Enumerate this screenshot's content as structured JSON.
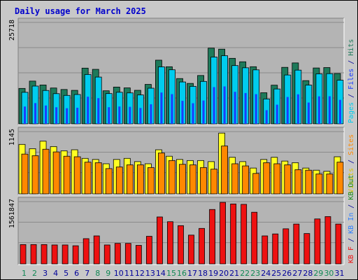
{
  "chart_data": {
    "type": "bar",
    "title": "Daily usage for March 2025",
    "days": [
      "1",
      "2",
      "3",
      "4",
      "5",
      "6",
      "7",
      "8",
      "9",
      "10",
      "11",
      "12",
      "13",
      "14",
      "15",
      "16",
      "17",
      "18",
      "19",
      "20",
      "21",
      "22",
      "23",
      "24",
      "25",
      "26",
      "27",
      "28",
      "29",
      "30",
      "31"
    ],
    "weekend_days": [
      "1",
      "2",
      "8",
      "9",
      "15",
      "16",
      "22",
      "23",
      "29",
      "30"
    ],
    "colors": {
      "background": "#c8c8c8",
      "plot_bg": "#b4b4b4",
      "pages": "#1e7a5a",
      "files": "#00ccee",
      "hits": "#1a3cff",
      "visits": "#ffff22",
      "sites": "#ff8800",
      "kb_out": "#1d8c1d",
      "kb_in": "#2e7fff",
      "kb_f": "#ee1111",
      "title": "#0000cc",
      "weekday_label": "#000099",
      "weekend_label": "#118855"
    },
    "panels": [
      {
        "id": "top",
        "ymax_label": "25718",
        "ymax": 25718,
        "legend": [
          {
            "text": "Pages",
            "color": "#00ccee"
          },
          {
            "text": " / ",
            "color": "#000099"
          },
          {
            "text": "Files",
            "color": "#1a3cff"
          },
          {
            "text": " / ",
            "color": "#000099"
          },
          {
            "text": "Hits",
            "color": "#1e7a5a"
          }
        ],
        "series": [
          {
            "name": "Hits",
            "values": [
              9050,
              10920,
              9930,
              9160,
              8780,
              8560,
              14230,
              13920,
              8450,
              9400,
              9190,
              8570,
              10080,
              16260,
              14580,
              11570,
              10330,
              12350,
              19330,
              19070,
              16730,
              15850,
              14590,
              7950,
              9880,
              14430,
              15560,
              11040,
              14270,
              14370,
              12860
            ]
          },
          {
            "name": "Files",
            "values": [
              8060,
              9650,
              8530,
              7720,
              7270,
              7500,
              12610,
              11950,
              7740,
              8070,
              7910,
              7390,
              9110,
              14550,
              13810,
              10700,
              9580,
              10840,
              17060,
              17390,
              14880,
              14320,
              13790,
              6360,
              8910,
              12480,
              13720,
              9900,
              12770,
              12820,
              11150
            ]
          }
        ]
      },
      {
        "id": "mid",
        "ymax_label": "1145",
        "ymax": 1145,
        "legend": [
          {
            "text": "Visits",
            "color": "#d8c200"
          },
          {
            "text": " / ",
            "color": "#000099"
          },
          {
            "text": "Sites",
            "color": "#ff8800"
          }
        ],
        "series": [
          {
            "name": "Visits",
            "values": [
              920,
              840,
              980,
              880,
              800,
              820,
              660,
              640,
              560,
              640,
              660,
              600,
              560,
              820,
              700,
              640,
              620,
              620,
              600,
              1130,
              680,
              600,
              480,
              640,
              680,
              610,
              580,
              480,
              440,
              420,
              690
            ]
          },
          {
            "name": "Sites",
            "values": [
              740,
              710,
              830,
              780,
              700,
              690,
              590,
              580,
              470,
              500,
              540,
              540,
              490,
              760,
              620,
              550,
              540,
              490,
              460,
              890,
              560,
              520,
              380,
              580,
              560,
              540,
              450,
              440,
              370,
              370,
              590
            ]
          }
        ]
      },
      {
        "id": "bottom",
        "ymax_label": "1561847",
        "ymax": 1561847,
        "legend": [
          {
            "text": "KB F",
            "color": "#ee1111"
          },
          {
            "text": " / ",
            "color": "#000099"
          },
          {
            "text": "KB In",
            "color": "#2e7fff"
          },
          {
            "text": " / ",
            "color": "#000099"
          },
          {
            "text": "KB Out",
            "color": "#1d8c1d"
          }
        ],
        "series": [
          {
            "name": "KB F",
            "values": [
              490000,
              490000,
              490000,
              480000,
              480000,
              460000,
              640000,
              710000,
              480000,
              520000,
              520000,
              470000,
              700000,
              1190000,
              1070000,
              970000,
              730000,
              900000,
              1380000,
              1560000,
              1520000,
              1510000,
              1310000,
              710000,
              760000,
              890000,
              1010000,
              770000,
              1140000,
              1200000,
              1010000
            ]
          }
        ]
      }
    ]
  }
}
